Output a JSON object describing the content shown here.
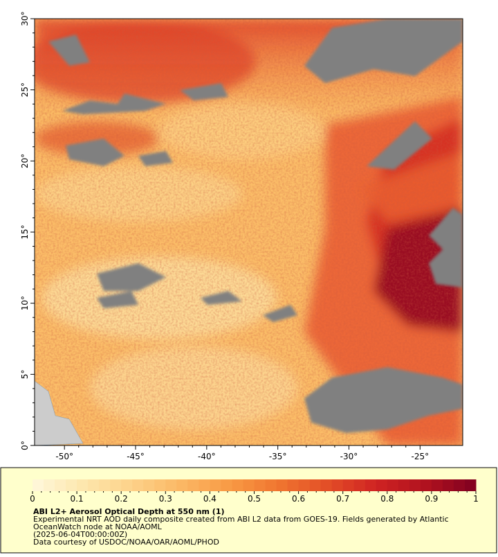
{
  "map": {
    "xlim": [
      -52.1,
      -22
    ],
    "ylim": [
      0,
      30
    ],
    "xticks": [
      {
        "value": -50,
        "label": "-50°"
      },
      {
        "value": -45,
        "label": "-45°"
      },
      {
        "value": -40,
        "label": "-40°"
      },
      {
        "value": -35,
        "label": "-35°"
      },
      {
        "value": -30,
        "label": "-30°"
      },
      {
        "value": -25,
        "label": "-25°"
      }
    ],
    "yticks": [
      {
        "value": 0,
        "label": "0°"
      },
      {
        "value": 5,
        "label": "5°"
      },
      {
        "value": 10,
        "label": "10°"
      },
      {
        "value": 15,
        "label": "15°"
      },
      {
        "value": 20,
        "label": "20°"
      },
      {
        "value": 25,
        "label": "25°"
      },
      {
        "value": 30,
        "label": "30°"
      }
    ],
    "colorbar": {
      "lim": [
        0,
        1
      ],
      "ticks": [
        0,
        0.1,
        0.2,
        0.3,
        0.4,
        0.5,
        0.6,
        0.7,
        0.8,
        0.9,
        1
      ],
      "colors": [
        "#fff8dc",
        "#fde7ae",
        "#fdd28a",
        "#fbb865",
        "#f89a45",
        "#f0752f",
        "#e34d27",
        "#cf2222",
        "#b0121f",
        "#7f0020"
      ]
    },
    "title": "ABI L2+ Aerosol Optical Depth at 550 nm (1)",
    "description_1": "Experimental NRT AOD daily composite created from ABI L2 data from GOES-19. Fields generated by Atlantic",
    "description_2": "OceanWatch node at NOAA/AOML",
    "date": "(2025-06-04T00:00:00Z)",
    "credit": "Data courtesy of USDOC/NOAA/OAR/AOML/PHOD"
  }
}
